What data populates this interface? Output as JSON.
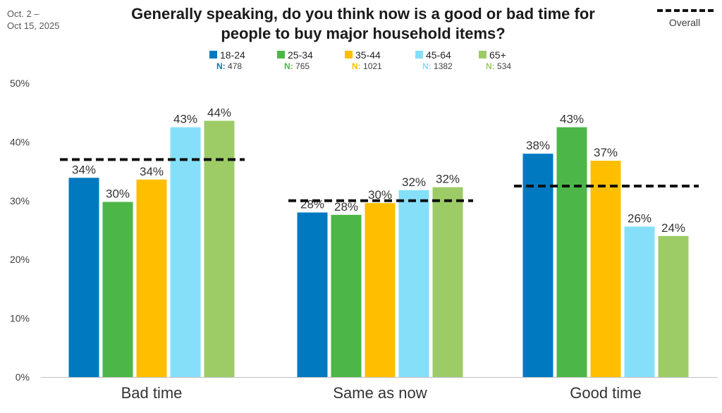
{
  "date_range": [
    "Oct. 2 –",
    "Oct 15, 2025"
  ],
  "overall_legend_label": "Overall",
  "n_label": "N:",
  "colors": {
    "18-24": "#0079c1",
    "25-34": "#4cb748",
    "35-44": "#ffbf00",
    "45-64": "#86dff9",
    "65+": "#9dcc67",
    "overall": "#111111",
    "axis": "#bfbfbf"
  },
  "chart_data": {
    "type": "bar",
    "title": "Generally speaking, do you think now is a good or bad time for people to buy major household items?",
    "title_lines": [
      "Generally speaking, do you think now is a good or bad time for",
      "people to buy major household items?"
    ],
    "categories": [
      "Bad time",
      "Same as now",
      "Good time"
    ],
    "series": [
      {
        "name": "18-24",
        "n": "478",
        "values": [
          34,
          28,
          38
        ],
        "heights": [
          33.9,
          28.0,
          38.0
        ],
        "labels": [
          "34%",
          "28%",
          "38%"
        ]
      },
      {
        "name": "25-34",
        "n": "765",
        "values": [
          30,
          28,
          43
        ],
        "heights": [
          29.8,
          27.6,
          42.5
        ],
        "labels": [
          "30%",
          "28%",
          "43%"
        ]
      },
      {
        "name": "35-44",
        "n": "1021",
        "values": [
          34,
          30,
          37
        ],
        "heights": [
          33.6,
          29.6,
          36.8
        ],
        "labels": [
          "34%",
          "30%",
          "37%"
        ]
      },
      {
        "name": "45-64",
        "n": "1382",
        "values": [
          43,
          32,
          26
        ],
        "heights": [
          42.5,
          31.8,
          25.6
        ],
        "labels": [
          "43%",
          "32%",
          "26%"
        ]
      },
      {
        "name": "65+",
        "n": "534",
        "values": [
          44,
          32,
          24
        ],
        "heights": [
          43.6,
          32.3,
          24.0
        ],
        "labels": [
          "44%",
          "32%",
          "24%"
        ]
      }
    ],
    "overall": {
      "name": "Overall",
      "values": [
        37.0,
        30.0,
        32.5
      ]
    },
    "ylim": [
      0,
      50
    ],
    "yticks": [
      0,
      10,
      20,
      30,
      40,
      50
    ],
    "ytick_labels": [
      "0%",
      "10%",
      "20%",
      "30%",
      "40%",
      "50%"
    ],
    "xlabel": "",
    "ylabel": "",
    "legend_position": "top-center",
    "grid": false
  }
}
